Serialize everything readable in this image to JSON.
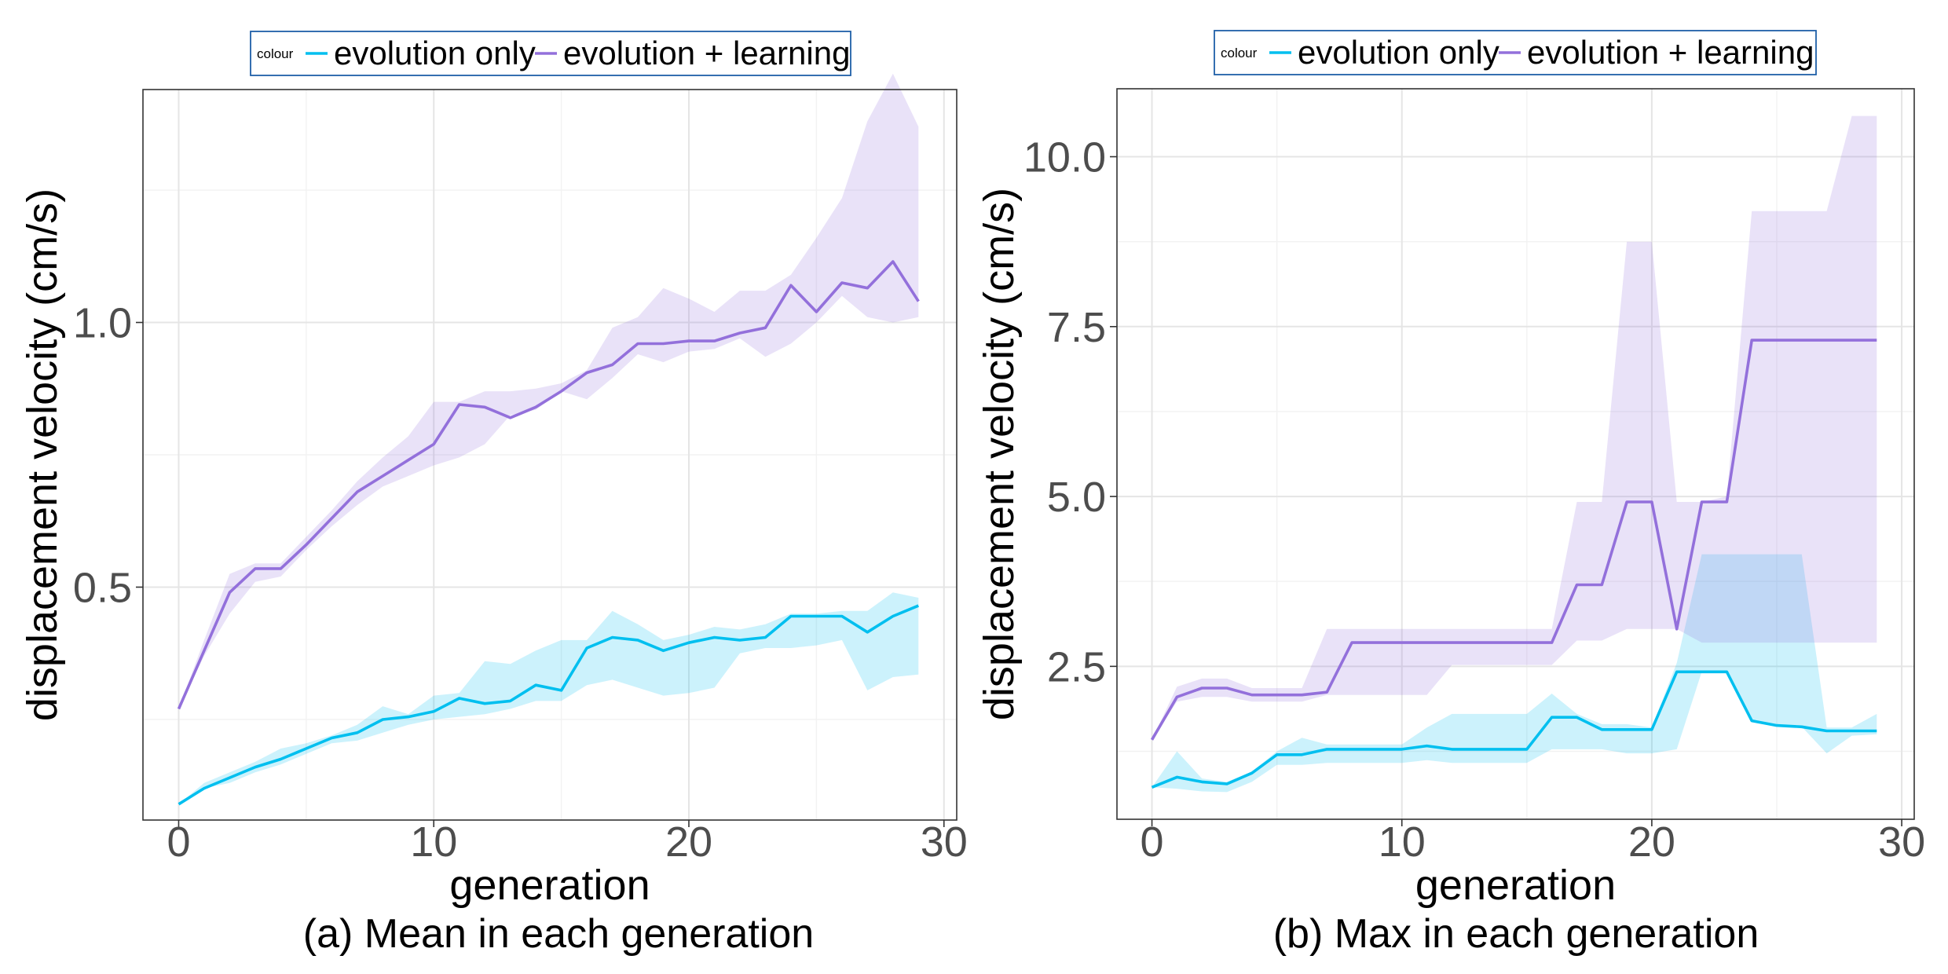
{
  "chart_data": [
    {
      "type": "line",
      "caption": "(a) Mean in each generation",
      "xlabel": "generation",
      "ylabel": "displacement velocity (cm/s)",
      "xlim": [
        -1.4,
        30.5
      ],
      "ylim": [
        0.06,
        1.44
      ],
      "xticks": [
        0,
        10,
        20,
        30
      ],
      "xtick_labels": [
        "0",
        "10",
        "20",
        "30"
      ],
      "yticks": [
        0.5,
        1.0
      ],
      "ytick_labels": [
        "0.5",
        "1.0"
      ],
      "grid": true,
      "legend": {
        "title": "colour",
        "position": "top",
        "labels": [
          "evolution only",
          "evolution + learning"
        ]
      },
      "series": [
        {
          "name": "evolution only",
          "color": "#00bfef",
          "x": [
            0,
            1,
            2,
            3,
            4,
            5,
            6,
            7,
            8,
            9,
            10,
            11,
            12,
            13,
            14,
            15,
            16,
            17,
            18,
            19,
            20,
            21,
            22,
            23,
            24,
            25,
            26,
            27,
            28,
            29
          ],
          "values": [
            0.09,
            0.12,
            0.14,
            0.16,
            0.175,
            0.195,
            0.215,
            0.225,
            0.25,
            0.255,
            0.265,
            0.29,
            0.28,
            0.285,
            0.315,
            0.305,
            0.385,
            0.405,
            0.4,
            0.38,
            0.395,
            0.405,
            0.4,
            0.405,
            0.445,
            0.445,
            0.445,
            0.415,
            0.445,
            0.465
          ],
          "lower": [
            0.09,
            0.12,
            0.13,
            0.15,
            0.165,
            0.185,
            0.205,
            0.21,
            0.225,
            0.24,
            0.25,
            0.255,
            0.26,
            0.27,
            0.285,
            0.285,
            0.315,
            0.325,
            0.31,
            0.295,
            0.3,
            0.31,
            0.375,
            0.385,
            0.385,
            0.39,
            0.4,
            0.305,
            0.33,
            0.335
          ],
          "upper": [
            0.09,
            0.13,
            0.15,
            0.17,
            0.195,
            0.205,
            0.22,
            0.24,
            0.275,
            0.26,
            0.295,
            0.3,
            0.36,
            0.355,
            0.38,
            0.4,
            0.4,
            0.455,
            0.43,
            0.4,
            0.41,
            0.425,
            0.42,
            0.43,
            0.45,
            0.45,
            0.455,
            0.455,
            0.49,
            0.48
          ]
        },
        {
          "name": "evolution + learning",
          "color": "#9370db",
          "x": [
            0,
            1,
            2,
            3,
            4,
            5,
            6,
            7,
            8,
            9,
            10,
            11,
            12,
            13,
            14,
            15,
            16,
            17,
            18,
            19,
            20,
            21,
            22,
            23,
            24,
            25,
            26,
            27,
            28,
            29
          ],
          "values": [
            0.27,
            0.38,
            0.49,
            0.535,
            0.535,
            0.58,
            0.63,
            0.68,
            0.71,
            0.74,
            0.77,
            0.845,
            0.84,
            0.82,
            0.84,
            0.87,
            0.905,
            0.92,
            0.96,
            0.96,
            0.965,
            0.965,
            0.98,
            0.99,
            1.07,
            1.02,
            1.075,
            1.065,
            1.115,
            1.04
          ],
          "lower": [
            0.27,
            0.37,
            0.45,
            0.51,
            0.52,
            0.57,
            0.615,
            0.655,
            0.69,
            0.71,
            0.73,
            0.745,
            0.77,
            0.825,
            0.835,
            0.87,
            0.855,
            0.895,
            0.94,
            0.925,
            0.945,
            0.95,
            0.97,
            0.935,
            0.96,
            1.0,
            1.05,
            1.01,
            1.0,
            1.01
          ],
          "upper": [
            0.27,
            0.4,
            0.525,
            0.545,
            0.545,
            0.595,
            0.645,
            0.7,
            0.745,
            0.785,
            0.85,
            0.85,
            0.87,
            0.87,
            0.875,
            0.885,
            0.91,
            0.99,
            1.01,
            1.065,
            1.045,
            1.02,
            1.06,
            1.06,
            1.09,
            1.16,
            1.235,
            1.38,
            1.47,
            1.37
          ]
        }
      ]
    },
    {
      "type": "line",
      "caption": "(b) Max in each generation",
      "xlabel": "generation",
      "ylabel": "displacement velocity (cm/s)",
      "xlim": [
        -1.4,
        30.5
      ],
      "ylim": [
        0.25,
        11.0
      ],
      "xticks": [
        0,
        10,
        20,
        30
      ],
      "xtick_labels": [
        "0",
        "10",
        "20",
        "30"
      ],
      "yticks": [
        2.5,
        5.0,
        7.5,
        10.0
      ],
      "ytick_labels": [
        "2.5",
        "5.0",
        "7.5",
        "10.0"
      ],
      "grid": true,
      "legend": {
        "title": "colour",
        "position": "top",
        "labels": [
          "evolution only",
          "evolution + learning"
        ]
      },
      "series": [
        {
          "name": "evolution only",
          "color": "#00bfef",
          "x": [
            0,
            1,
            2,
            3,
            4,
            5,
            6,
            7,
            8,
            9,
            10,
            11,
            12,
            13,
            14,
            15,
            16,
            17,
            18,
            19,
            20,
            21,
            22,
            23,
            24,
            25,
            26,
            27,
            28,
            29
          ],
          "values": [
            0.72,
            0.87,
            0.8,
            0.77,
            0.93,
            1.2,
            1.2,
            1.28,
            1.28,
            1.28,
            1.28,
            1.33,
            1.28,
            1.28,
            1.28,
            1.28,
            1.75,
            1.75,
            1.57,
            1.57,
            1.57,
            2.42,
            2.42,
            2.42,
            1.7,
            1.63,
            1.61,
            1.55,
            1.55,
            1.55
          ],
          "lower": [
            0.72,
            0.7,
            0.66,
            0.65,
            0.8,
            1.05,
            1.05,
            1.08,
            1.08,
            1.08,
            1.08,
            1.12,
            1.08,
            1.08,
            1.08,
            1.08,
            1.28,
            1.28,
            1.28,
            1.22,
            1.22,
            1.28,
            2.42,
            2.42,
            1.7,
            1.63,
            1.61,
            1.22,
            1.48,
            1.5
          ],
          "upper": [
            0.72,
            1.25,
            0.85,
            0.8,
            0.95,
            1.25,
            1.45,
            1.35,
            1.35,
            1.35,
            1.35,
            1.6,
            1.8,
            1.8,
            1.8,
            1.8,
            2.1,
            1.8,
            1.65,
            1.65,
            1.6,
            2.55,
            4.15,
            4.15,
            4.15,
            4.15,
            4.15,
            1.6,
            1.6,
            1.8
          ]
        },
        {
          "name": "evolution + learning",
          "color": "#9370db",
          "x": [
            0,
            1,
            2,
            3,
            4,
            5,
            6,
            7,
            8,
            9,
            10,
            11,
            12,
            13,
            14,
            15,
            16,
            17,
            18,
            19,
            20,
            21,
            22,
            23,
            24,
            25,
            26,
            27,
            28,
            29
          ],
          "values": [
            1.42,
            2.05,
            2.18,
            2.18,
            2.08,
            2.08,
            2.08,
            2.12,
            2.85,
            2.85,
            2.85,
            2.85,
            2.85,
            2.85,
            2.85,
            2.85,
            2.85,
            3.7,
            3.7,
            4.92,
            4.92,
            3.05,
            4.92,
            4.92,
            7.3,
            7.3,
            7.3,
            7.3,
            7.3,
            7.3
          ],
          "lower": [
            1.42,
            1.98,
            2.05,
            2.05,
            1.98,
            1.98,
            1.98,
            2.08,
            2.08,
            2.08,
            2.08,
            2.08,
            2.52,
            2.52,
            2.52,
            2.52,
            2.52,
            2.88,
            2.88,
            3.05,
            3.05,
            3.05,
            2.85,
            2.85,
            2.85,
            2.85,
            2.85,
            2.85,
            2.85,
            2.85
          ],
          "upper": [
            1.42,
            2.2,
            2.32,
            2.32,
            2.18,
            2.18,
            2.18,
            3.05,
            3.05,
            3.05,
            3.05,
            3.05,
            3.05,
            3.05,
            3.05,
            3.05,
            3.05,
            4.92,
            4.92,
            8.75,
            8.75,
            4.92,
            4.92,
            5.0,
            9.2,
            9.2,
            9.2,
            9.2,
            10.6,
            10.6
          ]
        }
      ]
    }
  ]
}
